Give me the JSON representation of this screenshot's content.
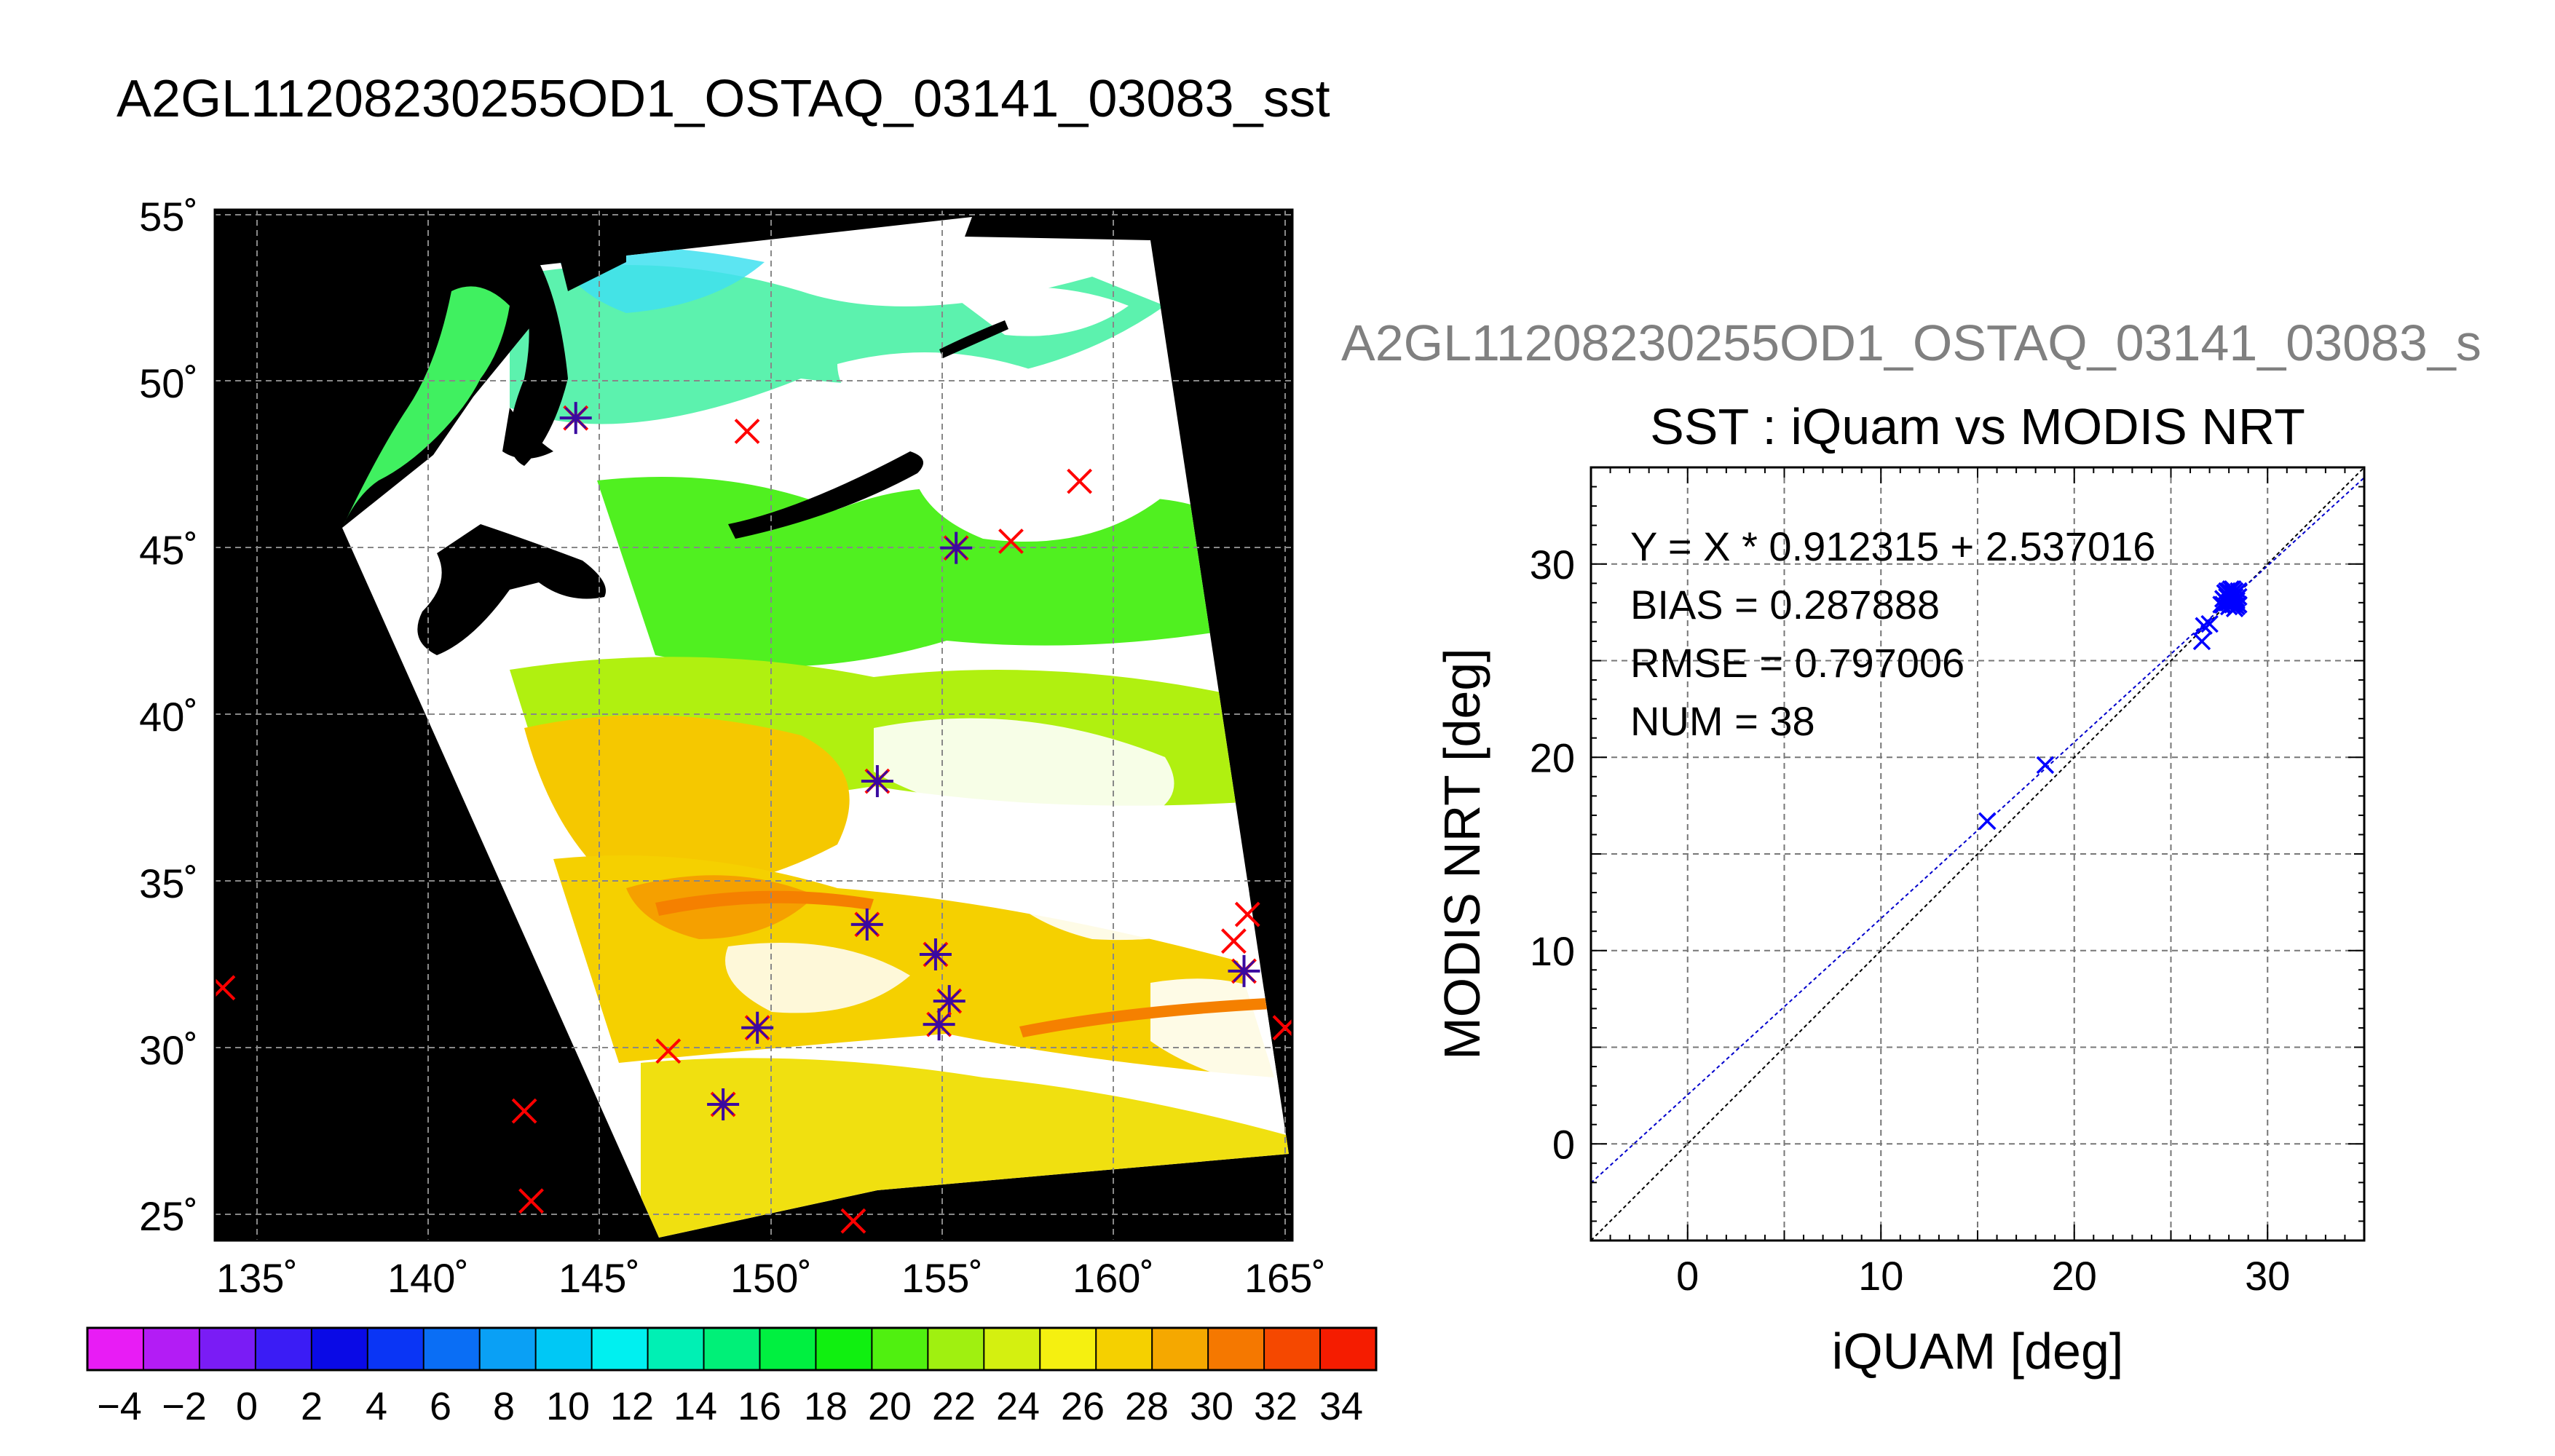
{
  "main_title": "A2GL11208230255OD1_OSTAQ_03141_03083_sst",
  "map": {
    "lon_labels": [
      "135˚",
      "140˚",
      "145˚",
      "150˚",
      "155˚",
      "160˚",
      "165˚"
    ],
    "lat_labels": [
      "55˚",
      "50˚",
      "45˚",
      "40˚",
      "35˚",
      "30˚",
      "25˚"
    ],
    "colorbar_labels": [
      "−4",
      "−2",
      "0",
      "2",
      "4",
      "6",
      "8",
      "10",
      "12",
      "14",
      "16",
      "18",
      "20",
      "22",
      "24",
      "26",
      "28",
      "30",
      "32",
      "34"
    ],
    "colorbar_colors": [
      "#e81cf5",
      "#b31cf5",
      "#7a1cf5",
      "#3b1cf5",
      "#0a0ae6",
      "#0a35f5",
      "#0a6ef5",
      "#0aa0f5",
      "#00c8f5",
      "#00f0f0",
      "#00f0b4",
      "#00f078",
      "#00f040",
      "#10f010",
      "#50f010",
      "#a0f010",
      "#d4f010",
      "#f5f010",
      "#f5d000",
      "#f5a800",
      "#f57800",
      "#f54800",
      "#f51c00"
    ],
    "markers": [
      {
        "lon": 144.3,
        "lat": 48.9,
        "type": "star"
      },
      {
        "lon": 149.3,
        "lat": 48.5,
        "type": "x"
      },
      {
        "lon": 159.0,
        "lat": 47.0,
        "type": "x"
      },
      {
        "lon": 155.4,
        "lat": 45.0,
        "type": "star"
      },
      {
        "lon": 157.0,
        "lat": 45.2,
        "type": "x"
      },
      {
        "lon": 153.1,
        "lat": 38.0,
        "type": "star"
      },
      {
        "lon": 152.8,
        "lat": 33.7,
        "type": "star"
      },
      {
        "lon": 154.8,
        "lat": 32.8,
        "type": "star"
      },
      {
        "lon": 155.2,
        "lat": 31.4,
        "type": "star"
      },
      {
        "lon": 154.9,
        "lat": 30.7,
        "type": "star"
      },
      {
        "lon": 149.6,
        "lat": 30.6,
        "type": "star"
      },
      {
        "lon": 148.6,
        "lat": 28.3,
        "type": "star"
      },
      {
        "lon": 147.0,
        "lat": 29.9,
        "type": "x"
      },
      {
        "lon": 163.8,
        "lat": 32.3,
        "type": "star"
      },
      {
        "lon": 163.5,
        "lat": 33.2,
        "type": "x"
      },
      {
        "lon": 163.9,
        "lat": 34.0,
        "type": "x"
      },
      {
        "lon": 165.0,
        "lat": 30.6,
        "type": "x"
      },
      {
        "lon": 134.0,
        "lat": 31.8,
        "type": "x"
      },
      {
        "lon": 142.8,
        "lat": 28.1,
        "type": "x"
      },
      {
        "lon": 143.0,
        "lat": 25.4,
        "type": "x"
      },
      {
        "lon": 152.4,
        "lat": 24.8,
        "type": "x"
      }
    ]
  },
  "scatter_header": "A2GL11208230255OD1_OSTAQ_03141_03083_s",
  "stats": {
    "fit": "Y = X * 0.912315 + 2.537016",
    "bias": "BIAS = 0.287888",
    "rmse": "RMSE = 0.797006",
    "num": "NUM = 38"
  },
  "chart_data": {
    "type": "scatter",
    "title": "SST : iQuam vs MODIS NRT",
    "xlabel": "iQUAM [deg]",
    "ylabel": "MODIS NRT [deg]",
    "xlim": [
      -5,
      35
    ],
    "ylim": [
      -5,
      35
    ],
    "xticks": [
      0,
      10,
      20,
      30
    ],
    "yticks": [
      0,
      10,
      20,
      30
    ],
    "grid": true,
    "fit": {
      "slope": 0.912315,
      "intercept": 2.537016,
      "color": "#0000cc"
    },
    "identity_line_color": "#000000",
    "marker_color": "#0000ff",
    "points": [
      [
        15.5,
        16.7
      ],
      [
        18.5,
        19.6
      ],
      [
        26.6,
        26.0
      ],
      [
        26.7,
        26.8
      ],
      [
        27.0,
        26.9
      ],
      [
        27.6,
        27.9
      ],
      [
        27.7,
        28.2
      ],
      [
        27.8,
        28.5
      ],
      [
        27.9,
        28.0
      ],
      [
        27.9,
        28.3
      ],
      [
        28.0,
        27.8
      ],
      [
        28.0,
        28.6
      ],
      [
        28.1,
        28.1
      ],
      [
        28.1,
        28.4
      ],
      [
        28.2,
        27.9
      ],
      [
        28.2,
        28.2
      ],
      [
        28.2,
        28.7
      ],
      [
        28.3,
        27.7
      ],
      [
        28.3,
        28.0
      ],
      [
        28.3,
        28.3
      ],
      [
        28.4,
        28.5
      ],
      [
        28.4,
        28.1
      ],
      [
        28.5,
        28.6
      ],
      [
        28.5,
        27.9
      ],
      [
        27.8,
        28.1
      ],
      [
        28.0,
        28.3
      ],
      [
        28.1,
        27.9
      ],
      [
        28.2,
        28.5
      ],
      [
        28.4,
        28.2
      ],
      [
        27.9,
        28.6
      ],
      [
        28.3,
        28.6
      ],
      [
        28.1,
        28.7
      ],
      [
        27.7,
        27.9
      ],
      [
        28.0,
        28.0
      ],
      [
        28.2,
        28.0
      ],
      [
        28.4,
        27.8
      ],
      [
        28.5,
        28.3
      ],
      [
        27.9,
        28.4
      ]
    ]
  }
}
